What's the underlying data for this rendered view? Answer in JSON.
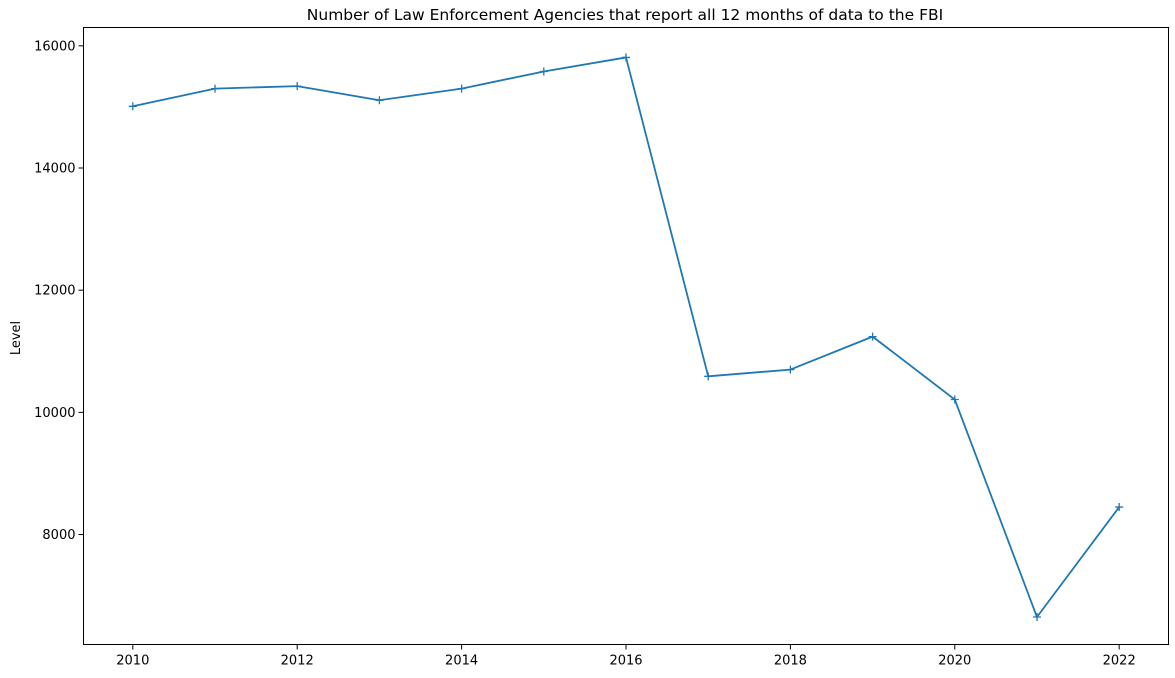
{
  "chart_data": {
    "type": "line",
    "title": "Number of Law Enforcement Agencies that report all 12 months of data to the FBI",
    "xlabel": "",
    "ylabel": "Level",
    "x": [
      2010,
      2011,
      2012,
      2013,
      2014,
      2015,
      2016,
      2017,
      2018,
      2019,
      2020,
      2021,
      2022
    ],
    "series": [
      {
        "values": [
          15010,
          15300,
          15340,
          15110,
          15300,
          15580,
          15810,
          10590,
          10700,
          11240,
          10210,
          6650,
          8450
        ],
        "color": "#1f77b4",
        "marker": "plus"
      }
    ],
    "xlim": [
      2009.4,
      2022.6
    ],
    "ylim": [
      6200,
      16300
    ],
    "xticks": [
      "2010",
      "2012",
      "2014",
      "2016",
      "2018",
      "2020",
      "2022"
    ],
    "yticks": [
      "8000",
      "10000",
      "12000",
      "14000",
      "16000"
    ],
    "grid": false
  }
}
